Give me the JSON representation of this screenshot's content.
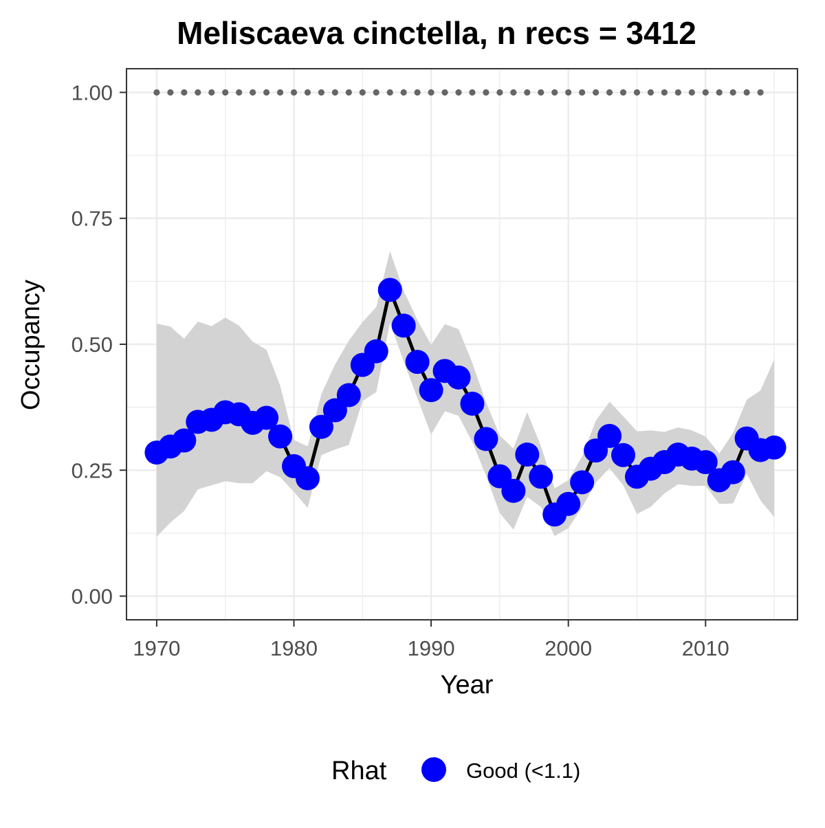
{
  "chart_data": {
    "type": "line",
    "title": "Meliscaeva cinctella, n recs = 3412",
    "xlabel": "Year",
    "ylabel": "Occupancy",
    "xlim": [
      1967.8,
      2016.7
    ],
    "ylim": [
      -0.047,
      1.047
    ],
    "x_ticks": [
      1970,
      1980,
      1990,
      2000,
      2010
    ],
    "y_ticks": [
      0.0,
      0.25,
      0.5,
      0.75,
      1.0
    ],
    "y_tick_labels": [
      "0.00",
      "0.25",
      "0.50",
      "0.75",
      "1.00"
    ],
    "grid": true,
    "colors": {
      "point": "#0000ff",
      "line": "#000000",
      "ribbon": "#d3d3d3",
      "reference": "#666666",
      "grid": "#ebebeb",
      "panel_border": "#333333"
    },
    "reference_series": {
      "value": 1.0,
      "years": [
        1970,
        1971,
        1972,
        1973,
        1974,
        1975,
        1976,
        1977,
        1978,
        1979,
        1980,
        1981,
        1982,
        1983,
        1984,
        1985,
        1986,
        1987,
        1988,
        1989,
        1990,
        1991,
        1992,
        1993,
        1994,
        1995,
        1996,
        1997,
        1998,
        1999,
        2000,
        2001,
        2002,
        2003,
        2004,
        2005,
        2006,
        2007,
        2008,
        2009,
        2010,
        2011,
        2012,
        2013,
        2014
      ]
    },
    "series": [
      {
        "years": [
          1970,
          1971,
          1972,
          1973,
          1974,
          1975,
          1976,
          1977,
          1978,
          1979,
          1980,
          1981,
          1982,
          1983,
          1984,
          1985,
          1986,
          1987,
          1988,
          1989,
          1990,
          1991,
          1992,
          1993,
          1994,
          1995,
          1996,
          1997,
          1998,
          1999,
          2000,
          2001,
          2002,
          2003,
          2004,
          2005,
          2006,
          2007,
          2008,
          2009,
          2010,
          2011,
          2012,
          2013,
          2014,
          2015
        ],
        "occupancy": [
          0.285,
          0.297,
          0.309,
          0.346,
          0.35,
          0.365,
          0.361,
          0.344,
          0.354,
          0.317,
          0.258,
          0.234,
          0.336,
          0.369,
          0.399,
          0.459,
          0.486,
          0.608,
          0.537,
          0.465,
          0.409,
          0.447,
          0.434,
          0.382,
          0.312,
          0.238,
          0.209,
          0.281,
          0.237,
          0.162,
          0.183,
          0.226,
          0.289,
          0.318,
          0.28,
          0.237,
          0.253,
          0.266,
          0.281,
          0.273,
          0.266,
          0.23,
          0.246,
          0.313,
          0.29,
          0.295
        ],
        "lower": [
          0.118,
          0.146,
          0.169,
          0.212,
          0.22,
          0.228,
          0.224,
          0.224,
          0.248,
          0.236,
          0.207,
          0.175,
          0.28,
          0.291,
          0.3,
          0.387,
          0.405,
          0.543,
          0.466,
          0.393,
          0.321,
          0.367,
          0.358,
          0.306,
          0.239,
          0.165,
          0.132,
          0.197,
          0.177,
          0.119,
          0.135,
          0.176,
          0.225,
          0.254,
          0.22,
          0.163,
          0.177,
          0.204,
          0.222,
          0.219,
          0.219,
          0.183,
          0.184,
          0.243,
          0.19,
          0.157
        ],
        "upper": [
          0.541,
          0.535,
          0.511,
          0.545,
          0.536,
          0.553,
          0.537,
          0.505,
          0.489,
          0.418,
          0.31,
          0.297,
          0.401,
          0.46,
          0.507,
          0.544,
          0.574,
          0.685,
          0.606,
          0.548,
          0.499,
          0.54,
          0.53,
          0.463,
          0.385,
          0.319,
          0.293,
          0.365,
          0.298,
          0.214,
          0.23,
          0.277,
          0.348,
          0.386,
          0.357,
          0.327,
          0.329,
          0.326,
          0.335,
          0.329,
          0.317,
          0.283,
          0.324,
          0.39,
          0.408,
          0.47
        ]
      }
    ],
    "legend": {
      "title": "Rhat",
      "placement": "bottom",
      "entries": [
        {
          "label": "Good (<1.1)",
          "color": "#0000ff"
        }
      ]
    }
  }
}
